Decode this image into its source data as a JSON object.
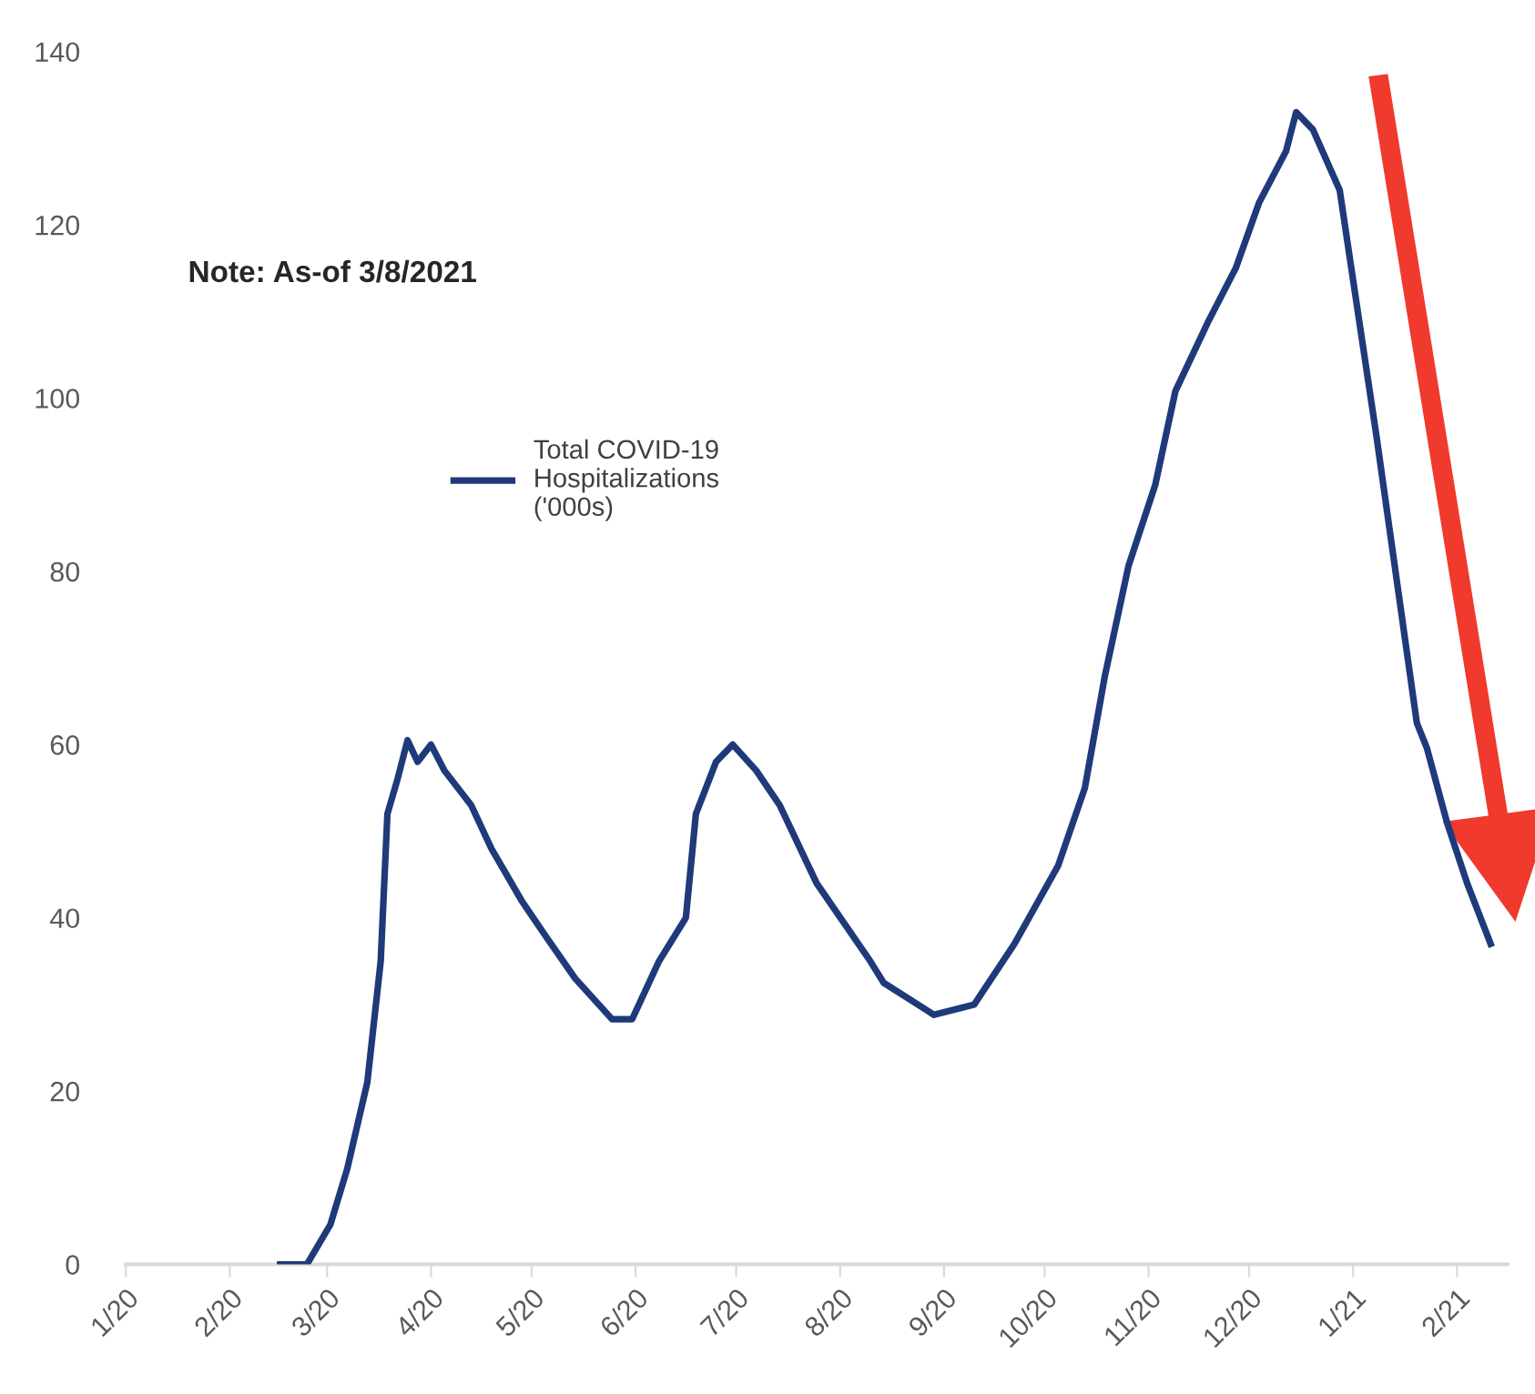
{
  "chart_data": {
    "type": "line",
    "x": [
      "2020-02-16",
      "2020-02-24",
      "2020-03-02",
      "2020-03-07",
      "2020-03-13",
      "2020-03-17",
      "2020-03-19",
      "2020-03-22",
      "2020-03-25",
      "2020-03-28",
      "2020-04-01",
      "2020-04-05",
      "2020-04-13",
      "2020-04-19",
      "2020-04-28",
      "2020-05-05",
      "2020-05-14",
      "2020-05-25",
      "2020-05-31",
      "2020-06-08",
      "2020-06-16",
      "2020-06-19",
      "2020-06-25",
      "2020-06-30",
      "2020-07-07",
      "2020-07-14",
      "2020-07-25",
      "2020-08-10",
      "2020-08-14",
      "2020-08-29",
      "2020-09-10",
      "2020-09-22",
      "2020-10-05",
      "2020-10-13",
      "2020-10-19",
      "2020-10-26",
      "2020-11-03",
      "2020-11-09",
      "2020-11-19",
      "2020-11-27",
      "2020-12-04",
      "2020-12-12",
      "2020-12-15",
      "2020-12-20",
      "2020-12-28",
      "2021-01-02",
      "2021-01-08",
      "2021-01-14",
      "2021-01-20",
      "2021-01-23",
      "2021-01-29",
      "2021-02-04",
      "2021-02-11"
    ],
    "series": [
      {
        "name": "Total COVID-19\nHospitalizations\n('000s)",
        "color": "#1f3a7a",
        "values": [
          0,
          0,
          4.6,
          11,
          21,
          35,
          52,
          56,
          60.5,
          58,
          60,
          57,
          53,
          48,
          42,
          38,
          33,
          28.3,
          28.3,
          35,
          40,
          52,
          58,
          60,
          57,
          53,
          44,
          35,
          32.5,
          28.8,
          30,
          37,
          46,
          55,
          68,
          80.6,
          90,
          100.8,
          109,
          115,
          122.6,
          128.5,
          133,
          131,
          124,
          111,
          95.5,
          79,
          62.5,
          59.6,
          51,
          44,
          37
        ]
      }
    ],
    "xlim": [
      "2020-01-01",
      "2021-02-16"
    ],
    "xticks": [
      {
        "value": "2020-01-01",
        "label": "1/20"
      },
      {
        "value": "2020-02-01",
        "label": "2/20"
      },
      {
        "value": "2020-03-01",
        "label": "3/20"
      },
      {
        "value": "2020-04-01",
        "label": "4/20"
      },
      {
        "value": "2020-05-01",
        "label": "5/20"
      },
      {
        "value": "2020-06-01",
        "label": "6/20"
      },
      {
        "value": "2020-07-01",
        "label": "7/20"
      },
      {
        "value": "2020-08-01",
        "label": "8/20"
      },
      {
        "value": "2020-09-01",
        "label": "9/20"
      },
      {
        "value": "2020-10-01",
        "label": "10/20"
      },
      {
        "value": "2020-11-01",
        "label": "11/20"
      },
      {
        "value": "2020-12-01",
        "label": "12/20"
      },
      {
        "value": "2021-01-01",
        "label": "1/21"
      },
      {
        "value": "2021-02-01",
        "label": "2/21"
      }
    ],
    "ylim": [
      0,
      140
    ],
    "yticks": [
      0,
      20,
      40,
      60,
      80,
      100,
      120,
      140
    ],
    "annotations": [
      "Note: As-of 3/8/2021"
    ],
    "legend": "top left",
    "grid": false,
    "marker": "none",
    "line_style": "solid"
  }
}
